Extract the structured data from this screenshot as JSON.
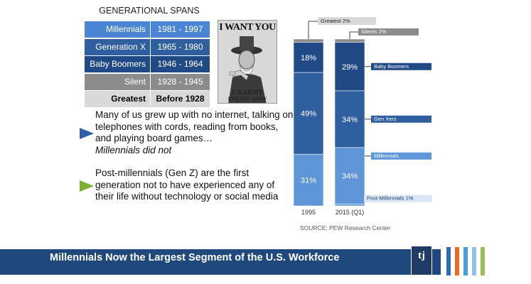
{
  "spans_table": {
    "title": "GENERATIONAL SPANS",
    "rows": [
      {
        "generation": "Millennials",
        "years": "1981 - 1997",
        "bg": "#4a86d4",
        "fg": "#ffffff"
      },
      {
        "generation": "Generation X",
        "years": "1965 - 1980",
        "bg": "#2f5f9e",
        "fg": "#ffffff"
      },
      {
        "generation": "Baby Boomers",
        "years": "1946 - 1964",
        "bg": "#1f4a85",
        "fg": "#ffffff"
      },
      {
        "generation": "Silent",
        "years": "1928 - 1945",
        "bg": "#8c8c8c",
        "fg": "#ffffff"
      },
      {
        "generation": "Greatest",
        "years": "Before 1928",
        "bg": "#d9d9d9",
        "fg": "#000000"
      }
    ]
  },
  "poster": {
    "headline": "I WANT YOU",
    "footer_line1": "U.S.ARMY",
    "footer_line2": "ENLIST NOW"
  },
  "bullets": [
    {
      "text": "Many of us grew up with no internet, talking on telephones with cords, reading from books, and playing board games…",
      "emphasis": "Millennials did not",
      "arrow_color": "#2e5fa8"
    },
    {
      "text": "Post-millennials (Gen Z) are the first generation not to have experienced any of their life without technology or social media",
      "emphasis": "",
      "arrow_color": "#7ab032"
    }
  ],
  "chart_data": {
    "type": "bar",
    "stacked": true,
    "categories": [
      "1995",
      "2015 (Q1)"
    ],
    "series": [
      {
        "name": "Post-Millennials",
        "values": [
          0,
          1
        ],
        "color": "#5f96d8",
        "label_1995": "",
        "label_2015": ""
      },
      {
        "name": "Millennials",
        "values": [
          31,
          34
        ],
        "color": "#5f96d8",
        "label_1995": "31%",
        "label_2015": "34%"
      },
      {
        "name": "Gen Xers",
        "values": [
          49,
          34
        ],
        "color": "#2f5f9e",
        "label_1995": "49%",
        "label_2015": "34%"
      },
      {
        "name": "Baby Boomers",
        "values": [
          18,
          29
        ],
        "color": "#1f4a85",
        "label_1995": "18%",
        "label_2015": "29%"
      },
      {
        "name": "Silents",
        "values": [
          0,
          2
        ],
        "color": "#8c8c8c",
        "label_1995": "",
        "label_2015": ""
      },
      {
        "name": "Greatest",
        "values": [
          2,
          0
        ],
        "color": "#8c8c8c",
        "label_1995": "",
        "label_2015": ""
      }
    ],
    "callouts": {
      "greatest": "Greatest 2%",
      "silents": "Silents 2%",
      "baby_boomers": "Baby Boomers",
      "gen_xers": "Gen Xers",
      "millennials": "Millennials",
      "post_millennials": "Post-Millennials 1%"
    },
    "source": "SOURCE: PEW Research Center"
  },
  "footer": {
    "title": "Millennials Now the Largest Segment of the U.S. Workforce",
    "logo_text": "tj",
    "stripe_colors": [
      "#2e6db4",
      "#e66c1f",
      "#4aa0d6",
      "#8fc1e8",
      "#9bbd5a"
    ]
  }
}
